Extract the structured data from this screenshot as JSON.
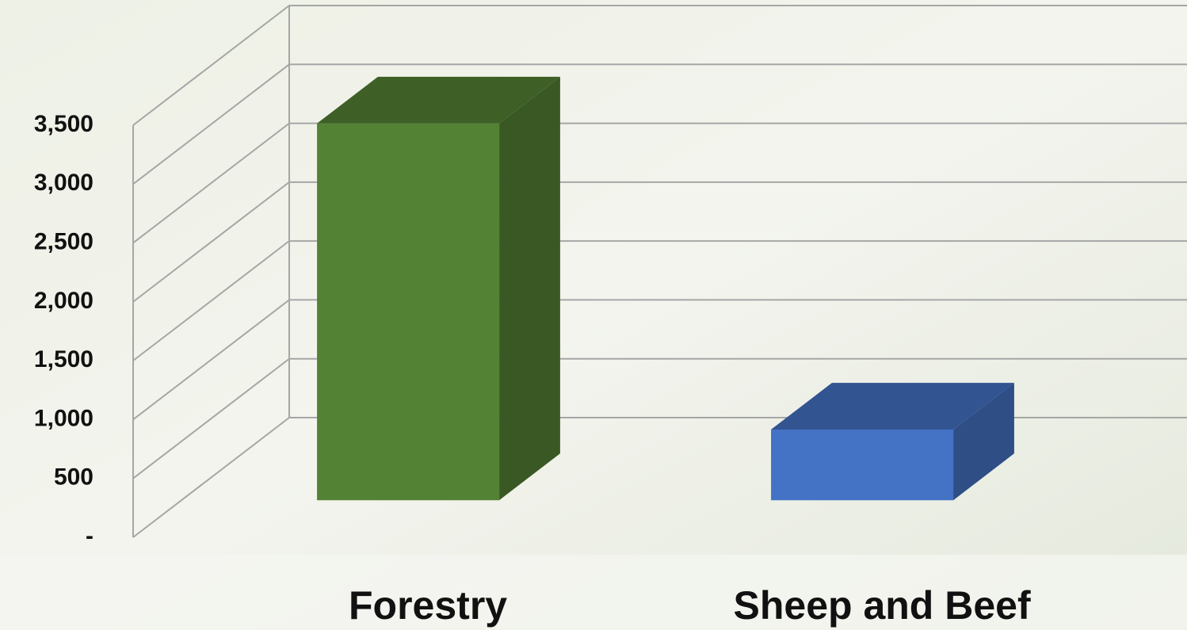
{
  "chart_data": {
    "type": "bar3d",
    "categories": [
      "Forestry",
      "Sheep and Beef"
    ],
    "series": [
      {
        "values": [
          3200,
          600
        ],
        "colors": [
          "#548235",
          "#4472c4"
        ]
      }
    ],
    "ylim": [
      0,
      3500
    ],
    "yticks": [
      {
        "value": 0,
        "label": "-"
      },
      500,
      {
        "value": 1000,
        "label": "1,000"
      },
      {
        "value": 1500,
        "label": "1,500"
      },
      {
        "value": 2000,
        "label": "2,000"
      },
      {
        "value": 2500,
        "label": "2,500"
      },
      {
        "value": 3000,
        "label": "3,000"
      },
      {
        "value": 3500,
        "label": "3,500"
      }
    ],
    "grid": true
  }
}
